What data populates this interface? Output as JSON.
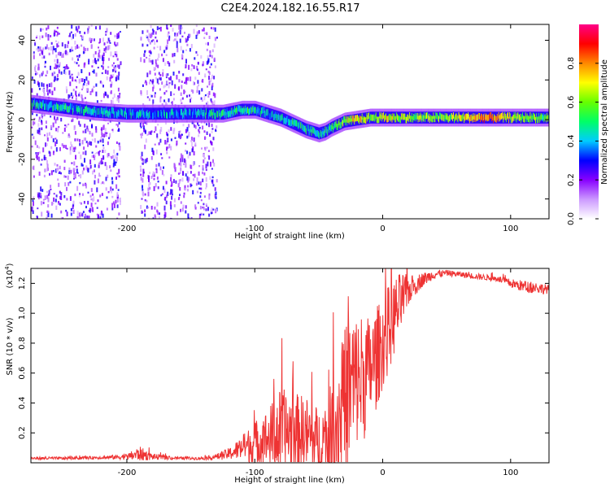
{
  "figure": {
    "title": "C2E4.2024.182.16.55.R17"
  },
  "chart_data": [
    {
      "type": "heatmap",
      "xlabel": "Height of straight line (km)",
      "ylabel": "Frequency (Hz)",
      "xlim": [
        -275,
        130
      ],
      "ylim": [
        -50,
        48
      ],
      "x_ticks": [
        -200,
        -100,
        0,
        100
      ],
      "y_ticks": [
        -40,
        -20,
        0,
        20,
        40
      ],
      "grid": false,
      "colorbar": {
        "label": "Normalized spectral amplitude",
        "range": [
          0.0,
          1.0
        ],
        "ticks": [
          0.0,
          0.2,
          0.4,
          0.6,
          0.8
        ],
        "colors": [
          "#ffffff",
          "#cc99ff",
          "#8800ff",
          "#0000ff",
          "#00ccff",
          "#00ff66",
          "#66ff00",
          "#ffff00",
          "#ff8800",
          "#ff0000",
          "#ff0088"
        ]
      },
      "ridge": {
        "x": [
          -275,
          -250,
          -225,
          -200,
          -175,
          -150,
          -125,
          -110,
          -100,
          -90,
          -80,
          -70,
          -60,
          -50,
          -45,
          -40,
          -30,
          -20,
          -10,
          0,
          20,
          50,
          80,
          100,
          130
        ],
        "y": [
          8,
          6,
          4,
          3,
          3,
          3,
          3,
          5,
          5,
          3,
          1,
          -2,
          -5,
          -7,
          -6,
          -4,
          -1,
          0,
          1,
          1,
          1,
          1,
          1,
          1,
          1
        ],
        "amplitude": [
          0.45,
          0.45,
          0.4,
          0.4,
          0.4,
          0.4,
          0.45,
          0.5,
          0.45,
          0.4,
          0.45,
          0.45,
          0.45,
          0.45,
          0.45,
          0.5,
          0.6,
          0.75,
          0.6,
          0.7,
          0.6,
          0.6,
          0.8,
          0.65,
          0.5
        ]
      },
      "noise_bands": [
        {
          "x_from": -275,
          "x_to": -205,
          "amplitude": 0.15
        },
        {
          "x_from": -190,
          "x_to": -130,
          "amplitude": 0.15
        }
      ]
    },
    {
      "type": "line",
      "xlabel": "Height of straight line (km)",
      "ylabel": "SNR (10 * v/v)",
      "y_multiplier_label": "(x10",
      "y_multiplier_exp": "4",
      "y_multiplier_close": ")",
      "xlim": [
        -275,
        130
      ],
      "ylim": [
        0.0,
        1.3
      ],
      "x_ticks": [
        -200,
        -100,
        0,
        100
      ],
      "y_ticks": [
        0.2,
        0.4,
        0.6,
        0.8,
        1.0,
        1.2
      ],
      "y_tick_labels": [
        "0.2",
        "0.4",
        "0.6",
        "0.8",
        "1.0",
        "1.2"
      ],
      "grid": false,
      "color": "#ee3333",
      "series": [
        {
          "x": [
            -275,
            -250,
            -220,
            -200,
            -190,
            -180,
            -160,
            -140,
            -130,
            -120,
            -110,
            -100,
            -90,
            -80,
            -70,
            -60,
            -50,
            -40,
            -35,
            -30,
            -25,
            -20,
            -15,
            -10,
            -5,
            0,
            5,
            10,
            15,
            20,
            30,
            40,
            50,
            60,
            70,
            80,
            90,
            100,
            110,
            120,
            130
          ],
          "y": [
            0.03,
            0.03,
            0.035,
            0.04,
            0.06,
            0.04,
            0.03,
            0.03,
            0.04,
            0.06,
            0.1,
            0.13,
            0.16,
            0.2,
            0.22,
            0.2,
            0.12,
            0.18,
            0.3,
            0.4,
            0.5,
            0.55,
            0.58,
            0.62,
            0.7,
            0.8,
            0.9,
            1.0,
            1.08,
            1.15,
            1.22,
            1.26,
            1.27,
            1.26,
            1.25,
            1.24,
            1.23,
            1.2,
            1.18,
            1.17,
            1.16
          ],
          "spread": [
            0.01,
            0.01,
            0.01,
            0.02,
            0.05,
            0.02,
            0.01,
            0.01,
            0.02,
            0.04,
            0.08,
            0.15,
            0.2,
            0.3,
            0.25,
            0.25,
            0.25,
            0.35,
            0.45,
            0.5,
            0.55,
            0.45,
            0.45,
            0.35,
            0.35,
            0.3,
            0.3,
            0.25,
            0.2,
            0.1,
            0.05,
            0.03,
            0.02,
            0.02,
            0.02,
            0.02,
            0.02,
            0.03,
            0.04,
            0.04,
            0.03
          ]
        }
      ]
    }
  ]
}
